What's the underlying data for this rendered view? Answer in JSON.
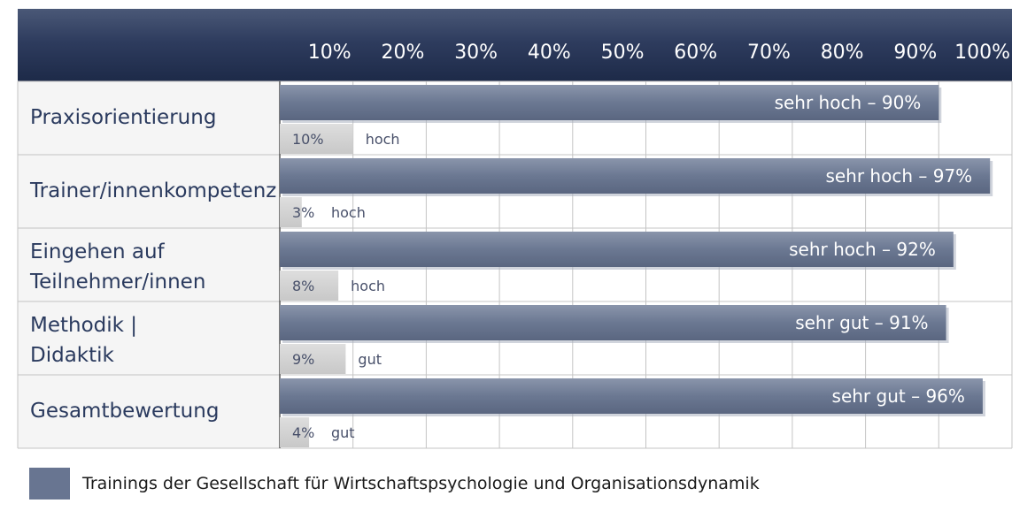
{
  "chart_data": {
    "type": "bar",
    "orientation": "horizontal",
    "stacked": true,
    "x_ticks": [
      "10%",
      "20%",
      "30%",
      "40%",
      "50%",
      "60%",
      "70%",
      "80%",
      "90%",
      "100%"
    ],
    "xlim": [
      0,
      100
    ],
    "grid": true,
    "categories": [
      {
        "label_lines": [
          "Praxisorientierung"
        ]
      },
      {
        "label_lines": [
          "Trainer/innenkompetenz"
        ]
      },
      {
        "label_lines": [
          "Eingehen auf",
          "Teilnehmer/innen"
        ]
      },
      {
        "label_lines": [
          "Methodik |",
          "Didaktik"
        ]
      },
      {
        "label_lines": [
          "Gesamtbewertung"
        ]
      }
    ],
    "series": [
      {
        "name": "Trainings der Gesellschaft für Wirtschaftspsychologie und Organisationsdynamik",
        "color": "#6b7892",
        "values": [
          90,
          97,
          92,
          91,
          96
        ],
        "labels": [
          "sehr hoch – 90%",
          "sehr hoch – 97%",
          "sehr hoch – 92%",
          "sehr gut – 91%",
          "sehr gut – 96%"
        ]
      },
      {
        "color": "#d3d3d3",
        "values": [
          10,
          3,
          8,
          9,
          4
        ],
        "value_labels": [
          "10%",
          "3%",
          "8%",
          "9%",
          "4%"
        ],
        "rating_labels": [
          "hoch",
          "hoch",
          "hoch",
          "gut",
          "gut"
        ]
      }
    ],
    "legend": {
      "position": "bottom-left",
      "text": "Trainings der Gesellschaft für Wirtschaftspsychologie und Organisationsdynamik"
    }
  },
  "colors": {
    "header": "#2d3b5c",
    "bar_main": "#6b7892",
    "bar_small": "#d3d3d3",
    "grid": "#c4c4c4",
    "category_text": "#2a3a5e"
  }
}
